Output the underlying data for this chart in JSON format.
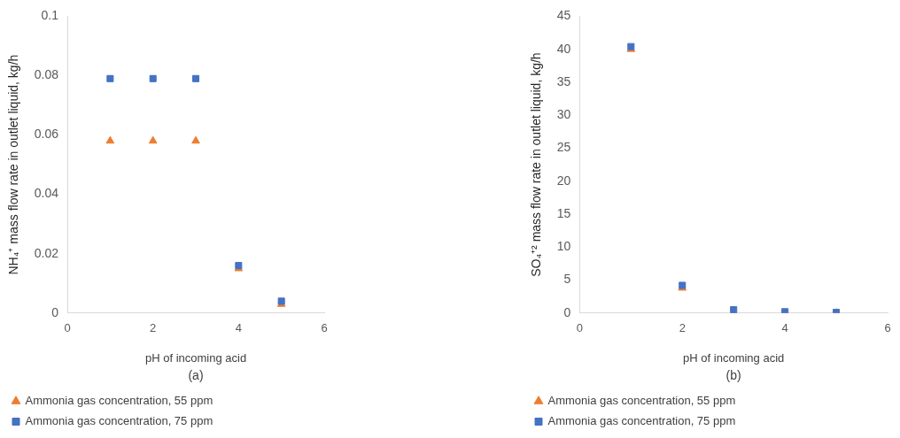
{
  "chart_data": [
    {
      "type": "scatter",
      "xlabel": "pH of incoming acid",
      "ylabel": "NH₄⁺ mass flow rate in outlet liquid, kg/h",
      "annotations": [
        "(a)"
      ],
      "x": [
        1,
        2,
        3,
        4,
        5
      ],
      "series": [
        {
          "name": "Ammonia gas concentration, 55 ppm",
          "color": "#ed7d31",
          "marker": "triangle",
          "values": [
            0.058,
            0.058,
            0.058,
            0.015,
            0.003
          ]
        },
        {
          "name": "Ammonia gas concentration, 75 ppm",
          "color": "#4472c4",
          "marker": "square",
          "values": [
            0.079,
            0.079,
            0.079,
            0.016,
            0.004
          ]
        }
      ],
      "xlim": [
        0,
        6
      ],
      "xticks": [
        0,
        2,
        4,
        6
      ],
      "ylim": [
        0,
        0.1
      ],
      "yticks": [
        0,
        0.02,
        0.04,
        0.06,
        0.08,
        0.1
      ],
      "grid": false,
      "legend": "bottom"
    },
    {
      "type": "scatter",
      "xlabel": "pH of incoming acid",
      "ylabel": "SO₄⁺² mass flow rate in outlet liquid, kg/h",
      "annotations": [
        "(b)"
      ],
      "x": [
        1,
        2,
        3,
        4,
        5
      ],
      "series": [
        {
          "name": "Ammonia gas concentration, 55 ppm",
          "color": "#ed7d31",
          "marker": "triangle",
          "values": [
            40,
            3.8,
            0,
            0,
            0
          ]
        },
        {
          "name": "Ammonia gas concentration, 75 ppm",
          "color": "#4472c4",
          "marker": "square",
          "values": [
            40.4,
            4.2,
            0.5,
            0.2,
            0.1
          ]
        }
      ],
      "xlim": [
        0,
        6
      ],
      "xticks": [
        0,
        2,
        4,
        6
      ],
      "ylim": [
        0,
        45
      ],
      "yticks": [
        0,
        5,
        10,
        15,
        20,
        25,
        30,
        35,
        40,
        45
      ],
      "grid": false,
      "legend": "bottom"
    }
  ]
}
